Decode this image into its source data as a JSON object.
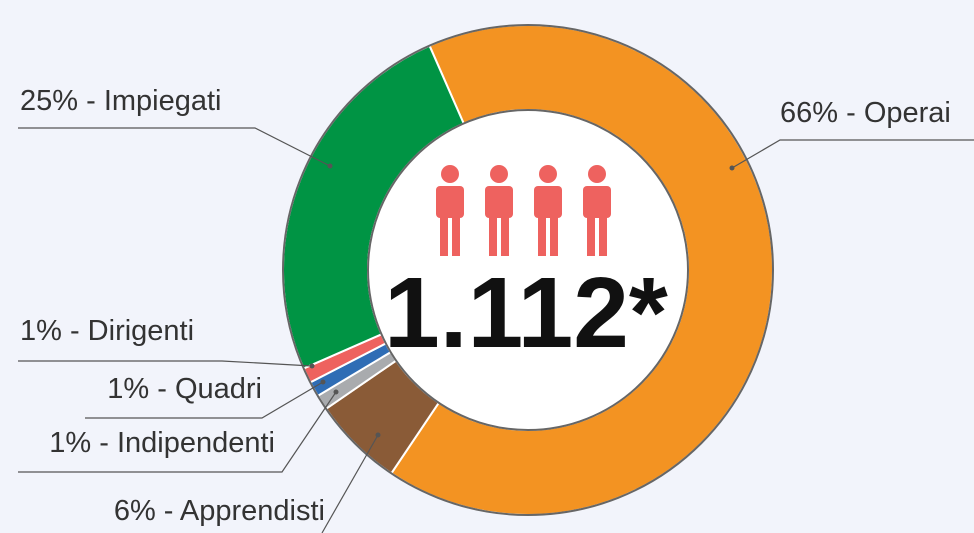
{
  "chart_data": {
    "type": "donut",
    "values": [
      66,
      6,
      1,
      1,
      1,
      25
    ],
    "value_labels": [
      "66% - Operai",
      "6% - Apprendisti",
      "1% - Indipendenti",
      "1% - Quadri",
      "1% - Dirigenti",
      "25% - Impiegati"
    ],
    "colors": [
      "#f39322",
      "#8a5b37",
      "#a9abae",
      "#2f6db5",
      "#ee625f",
      "#009444"
    ],
    "center_label": "1.112*"
  }
}
